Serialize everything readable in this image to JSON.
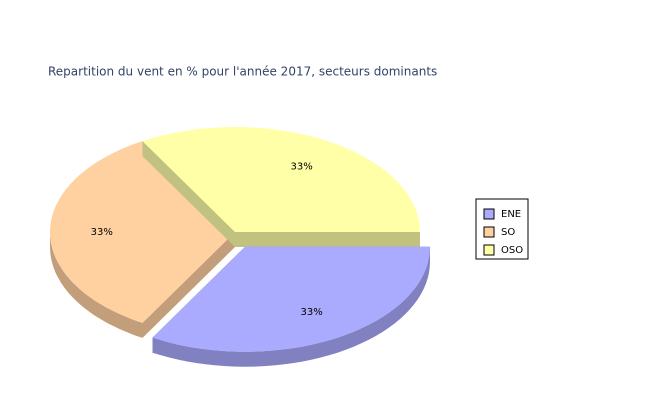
{
  "chart_data": {
    "type": "pie",
    "title": "Repartition du vent en % pour l'année 2017, secteurs dominants",
    "categories": [
      "ENE",
      "SO",
      "OSO"
    ],
    "values": [
      33,
      33,
      33
    ],
    "value_labels": [
      "33%",
      "33%",
      "33%"
    ],
    "colors": [
      "#aaaaff",
      "#ffd0a0",
      "#ffffa8"
    ],
    "legend": "right"
  }
}
